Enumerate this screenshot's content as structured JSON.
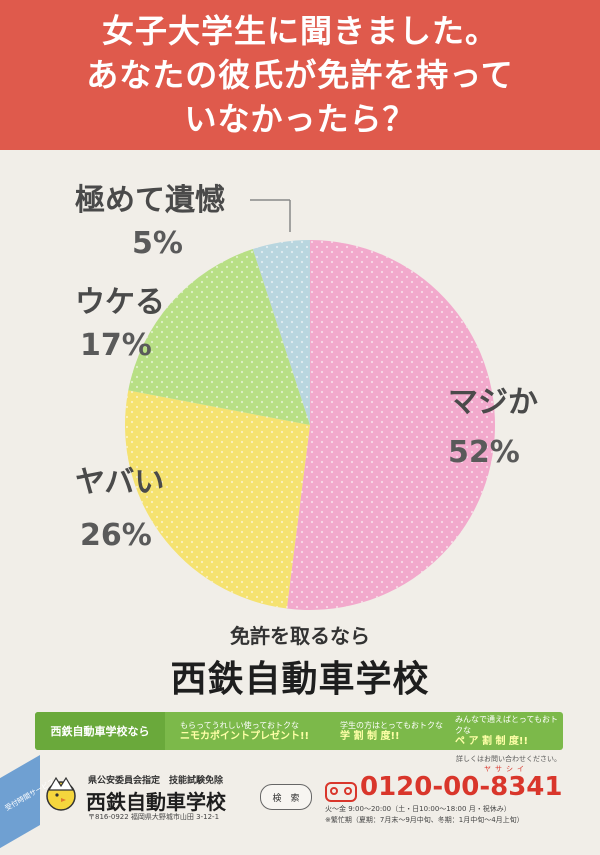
{
  "header": {
    "line1": "女子大学生に聞きました。",
    "line2": "あなたの彼氏が免許を持って",
    "line3": "いなかったら？"
  },
  "chart_data": {
    "type": "pie",
    "categories": [
      "マジか",
      "ヤバい",
      "ウケる",
      "極めて遺憾"
    ],
    "values": [
      52,
      26,
      17,
      5
    ],
    "unit": "%",
    "labels": [
      "52%",
      "26%",
      "17%",
      "5%"
    ],
    "colors": [
      "#f2a9cc",
      "#f5e270",
      "#b8df85",
      "#b9d6df"
    ]
  },
  "tagline": {
    "line1": "免許を取るなら",
    "school": "西鉄自動車学校"
  },
  "promo_bar": {
    "first": "西鉄自動車学校なら",
    "seg1_small": "もらってうれしい使っておトクな",
    "seg1_big": "ニモカポイントプレゼント!!",
    "seg2_small": "学生の方はとってもおトクな",
    "seg2_big": "学 割 制 度!!",
    "seg3_small": "みんなで通えばとってもおトクな",
    "seg3_big": "ペ ア 割 制 度!!",
    "note": "詳しくはお問い合わせください。"
  },
  "footer": {
    "designation": "県公安委員会指定　技能試験免除",
    "school_name": "西鉄自動車学校",
    "address": "〒816-0922 福岡県大野城市山田 3-12-1",
    "search_label": "検　索",
    "phone": "0120-00-8341",
    "phone_kana": "ヤサシイ",
    "hours_line1": "火～金 9:00～20:00（土・日10:00～18:00 月・祝休み）",
    "hours_line2": "※繁忙期（夏期：7月末～9月中旬、冬期：1月中旬～4月上旬）",
    "corner_text": "受付時間サービス"
  },
  "colors": {
    "banner": "#df5a4c",
    "background": "#f1eee8",
    "promo_green": "#7cb94a",
    "phone_red": "#d9362b"
  }
}
